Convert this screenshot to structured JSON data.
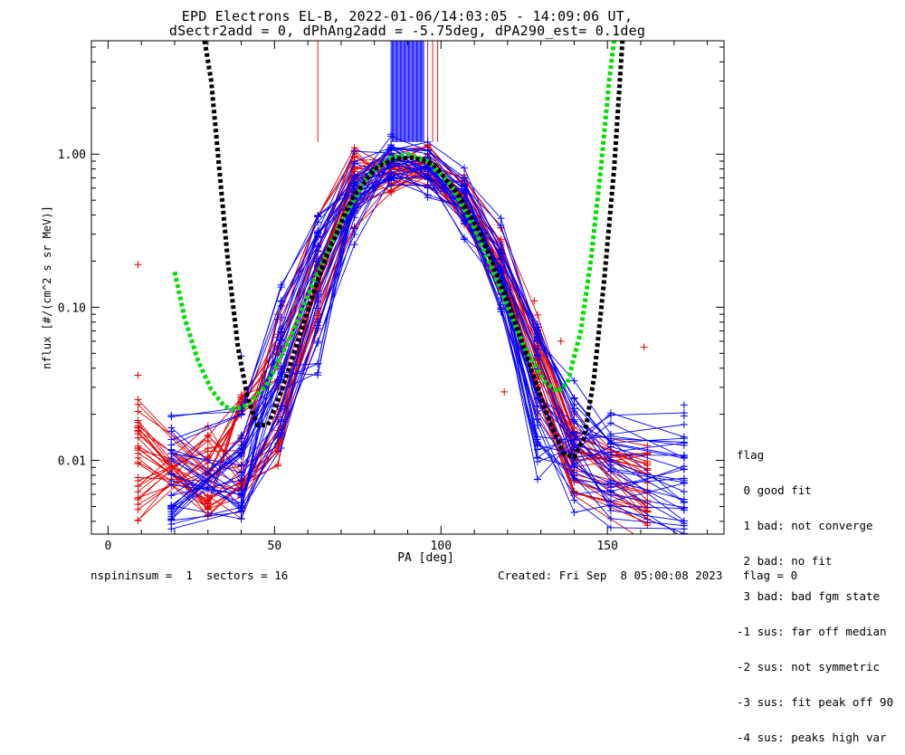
{
  "title": {
    "line1": "EPD Electrons EL-B, 2022-01-06/14:03:05 - 14:09:06 UT,",
    "line2": "dSectr2add = 0, dPhAng2add = -5.75deg, dPA290_est=   0.1deg"
  },
  "footer": {
    "left": "nspininsum =  1  sectors = 16",
    "right": "Created: Fri Sep  8 05:00:08 2023   flag = 0"
  },
  "legend": {
    "heading": "flag",
    "items": [
      " 0 good fit",
      " 1 bad: not converge",
      " 2 bad: no fit",
      " 3 bad: bad fgm state",
      "-1 sus: far off median",
      "-2 sus: not symmetric",
      "-3 sus: fit peak off 90",
      "-4 sus: peaks high var"
    ]
  },
  "chart_data": {
    "type": "line",
    "xlabel": "PA [deg]",
    "ylabel": "nflux [#/(cm^2 s sr MeV)]",
    "xlim": [
      -5,
      185
    ],
    "ylim": [
      0.0033,
      5.5
    ],
    "yscale": "log",
    "xticks": [
      0,
      50,
      100,
      150
    ],
    "xtick_labels": [
      "0",
      "50",
      "100",
      "150"
    ],
    "yticks": [
      0.01,
      0.1,
      1.0
    ],
    "ytick_labels": [
      "0.01",
      "0.10",
      "1.00"
    ],
    "colors": {
      "red": "#e00000",
      "blue": "#0000ff",
      "green": "#00e000",
      "black": "#000000"
    },
    "series": [
      {
        "style": "red-sweeps",
        "curves": [
          [
            [
              9,
              0.015
            ],
            [
              30,
              0.0055
            ],
            [
              51,
              0.0115
            ],
            [
              63,
              0.2
            ],
            [
              74,
              0.75
            ],
            [
              85,
              0.9
            ],
            [
              96,
              0.87
            ],
            [
              107,
              0.52
            ],
            [
              118,
              0.2
            ],
            [
              129,
              0.045
            ],
            [
              140,
              0.012
            ],
            [
              162,
              0.0095
            ]
          ],
          [
            [
              9,
              0.0045
            ],
            [
              30,
              0.011
            ],
            [
              40,
              0.02
            ],
            [
              51,
              0.045
            ],
            [
              63,
              0.15
            ],
            [
              74,
              0.55
            ],
            [
              85,
              0.82
            ],
            [
              96,
              0.95
            ],
            [
              107,
              0.55
            ],
            [
              118,
              0.24
            ],
            [
              129,
              0.06
            ],
            [
              140,
              0.014
            ],
            [
              162,
              0.0042
            ]
          ],
          [
            [
              9,
              0.0145
            ],
            [
              30,
              0.0075
            ],
            [
              40,
              0.0055
            ],
            [
              51,
              0.022
            ],
            [
              63,
              0.11
            ],
            [
              74,
              0.6
            ],
            [
              85,
              0.7
            ],
            [
              96,
              0.8
            ],
            [
              107,
              0.45
            ],
            [
              118,
              0.16
            ],
            [
              129,
              0.03
            ],
            [
              140,
              0.008
            ],
            [
              162,
              0.005
            ]
          ],
          [
            [
              9,
              0.0068
            ],
            [
              30,
              0.0095
            ],
            [
              40,
              0.012
            ],
            [
              51,
              0.085
            ],
            [
              63,
              0.3
            ],
            [
              74,
              0.88
            ],
            [
              85,
              0.85
            ],
            [
              96,
              0.9
            ],
            [
              107,
              0.6
            ],
            [
              118,
              0.28
            ],
            [
              129,
              0.07
            ],
            [
              140,
              0.016
            ],
            [
              162,
              0.0065
            ]
          ],
          [
            [
              9,
              0.0125
            ],
            [
              30,
              0.0048
            ],
            [
              40,
              0.0075
            ],
            [
              51,
              0.0125
            ],
            [
              63,
              0.085
            ],
            [
              74,
              0.42
            ],
            [
              85,
              0.68
            ],
            [
              96,
              0.72
            ],
            [
              107,
              0.42
            ],
            [
              118,
              0.13
            ],
            [
              129,
              0.025
            ],
            [
              140,
              0.0065
            ],
            [
              162,
              0.0038
            ]
          ],
          [
            [
              9,
              0.0195
            ],
            [
              30,
              0.0085
            ],
            [
              40,
              0.018
            ],
            [
              51,
              0.035
            ],
            [
              63,
              0.18
            ],
            [
              74,
              0.7
            ],
            [
              85,
              0.95
            ],
            [
              96,
              0.85
            ],
            [
              107,
              0.48
            ],
            [
              118,
              0.2
            ],
            [
              129,
              0.05
            ],
            [
              140,
              0.011
            ],
            [
              162,
              0.0085
            ]
          ],
          [
            [
              9,
              0.0052
            ],
            [
              30,
              0.0135
            ],
            [
              40,
              0.009
            ],
            [
              51,
              0.016
            ],
            [
              63,
              0.13
            ],
            [
              74,
              0.5
            ],
            [
              85,
              0.76
            ],
            [
              96,
              0.78
            ],
            [
              107,
              0.5
            ],
            [
              118,
              0.17
            ],
            [
              129,
              0.035
            ],
            [
              140,
              0.009
            ],
            [
              162,
              0.0058
            ]
          ],
          [
            [
              9,
              0.0155
            ],
            [
              30,
              0.006
            ],
            [
              40,
              0.025
            ],
            [
              51,
              0.055
            ],
            [
              63,
              0.24
            ],
            [
              74,
              0.82
            ],
            [
              85,
              0.8
            ],
            [
              96,
              0.92
            ],
            [
              107,
              0.56
            ],
            [
              118,
              0.22
            ],
            [
              129,
              0.055
            ],
            [
              140,
              0.013
            ],
            [
              162,
              0.011
            ]
          ]
        ]
      },
      {
        "style": "blue-sweeps",
        "curves": [
          [
            [
              19,
              0.0052
            ],
            [
              40,
              0.011
            ],
            [
              52,
              0.065
            ],
            [
              63,
              0.25
            ],
            [
              74,
              0.65
            ],
            [
              85,
              0.88
            ],
            [
              96,
              0.8
            ],
            [
              107,
              0.45
            ],
            [
              118,
              0.14
            ],
            [
              129,
              0.012
            ],
            [
              140,
              0.0105
            ],
            [
              151,
              0.0055
            ],
            [
              173,
              0.0045
            ]
          ],
          [
            [
              19,
              0.0078
            ],
            [
              40,
              0.0045
            ],
            [
              52,
              0.03
            ],
            [
              63,
              0.16
            ],
            [
              74,
              0.5
            ],
            [
              85,
              0.92
            ],
            [
              96,
              0.76
            ],
            [
              107,
              0.5
            ],
            [
              118,
              0.2
            ],
            [
              129,
              0.028
            ],
            [
              140,
              0.016
            ],
            [
              151,
              0.0085
            ],
            [
              173,
              0.0062
            ]
          ],
          [
            [
              19,
              0.0043
            ],
            [
              40,
              0.0135
            ],
            [
              52,
              0.045
            ],
            [
              63,
              0.2
            ],
            [
              74,
              0.58
            ],
            [
              85,
              0.82
            ],
            [
              96,
              0.85
            ],
            [
              107,
              0.55
            ],
            [
              118,
              0.22
            ],
            [
              129,
              0.045
            ],
            [
              140,
              0.0095
            ],
            [
              151,
              0.0135
            ],
            [
              173,
              0.011
            ]
          ],
          [
            [
              19,
              0.0098
            ],
            [
              40,
              0.0075
            ],
            [
              52,
              0.02
            ],
            [
              63,
              0.09
            ],
            [
              74,
              0.4
            ],
            [
              85,
              0.78
            ],
            [
              96,
              0.7
            ],
            [
              107,
              0.38
            ],
            [
              118,
              0.11
            ],
            [
              129,
              0.0095
            ],
            [
              140,
              0.012
            ],
            [
              151,
              0.0175
            ],
            [
              173,
              0.0155
            ]
          ],
          [
            [
              19,
              0.0125
            ],
            [
              40,
              0.0058
            ],
            [
              52,
              0.085
            ],
            [
              63,
              0.3
            ],
            [
              74,
              0.75
            ],
            [
              85,
              0.95
            ],
            [
              96,
              0.9
            ],
            [
              107,
              0.6
            ],
            [
              118,
              0.26
            ],
            [
              129,
              0.06
            ],
            [
              140,
              0.02
            ],
            [
              151,
              0.0105
            ],
            [
              173,
              0.0049
            ]
          ],
          [
            [
              19,
              0.0061
            ],
            [
              40,
              0.009
            ],
            [
              52,
              0.038
            ],
            [
              63,
              0.038
            ],
            [
              74,
              0.55
            ],
            [
              85,
              0.86
            ],
            [
              96,
              0.62
            ],
            [
              107,
              0.35
            ],
            [
              118,
              0.15
            ],
            [
              129,
              0.021
            ],
            [
              140,
              0.0078
            ],
            [
              151,
              0.0065
            ],
            [
              173,
              0.0088
            ]
          ],
          [
            [
              19,
              0.0155
            ],
            [
              40,
              0.026
            ],
            [
              52,
              0.12
            ],
            [
              63,
              0.36
            ],
            [
              74,
              0.8
            ],
            [
              85,
              1.05
            ],
            [
              96,
              0.95
            ],
            [
              107,
              0.62
            ],
            [
              118,
              0.3
            ],
            [
              129,
              0.07
            ],
            [
              140,
              0.025
            ],
            [
              151,
              0.015
            ],
            [
              173,
              0.013
            ]
          ],
          [
            [
              19,
              0.0041
            ],
            [
              40,
              0.0042
            ],
            [
              52,
              0.015
            ],
            [
              63,
              0.07
            ],
            [
              74,
              0.3
            ],
            [
              85,
              0.72
            ],
            [
              96,
              0.66
            ],
            [
              107,
              0.42
            ],
            [
              118,
              0.12
            ],
            [
              129,
              0.016
            ],
            [
              140,
              0.006
            ],
            [
              151,
              0.0048
            ],
            [
              173,
              0.0041
            ]
          ]
        ]
      },
      {
        "style": "green-fit",
        "points": [
          [
            20,
            0.17
          ],
          [
            23,
            0.085
          ],
          [
            27,
            0.045
          ],
          [
            31,
            0.029
          ],
          [
            35,
            0.0225
          ],
          [
            38,
            0.0215
          ],
          [
            42,
            0.023
          ],
          [
            48,
            0.032
          ],
          [
            55,
            0.065
          ],
          [
            62,
            0.15
          ],
          [
            70,
            0.36
          ],
          [
            78,
            0.72
          ],
          [
            85,
            0.95
          ],
          [
            90,
            1.0
          ],
          [
            96,
            0.9
          ],
          [
            103,
            0.63
          ],
          [
            110,
            0.33
          ],
          [
            118,
            0.13
          ],
          [
            125,
            0.055
          ],
          [
            131,
            0.033
          ],
          [
            135,
            0.028
          ],
          [
            138,
            0.032
          ],
          [
            142,
            0.07
          ],
          [
            145,
            0.2
          ],
          [
            148,
            0.8
          ],
          [
            150.5,
            3.0
          ],
          [
            152,
            5.5
          ]
        ]
      },
      {
        "style": "black-fit",
        "points": [
          [
            29,
            5.5
          ],
          [
            31,
            3.0
          ],
          [
            33,
            1.0
          ],
          [
            36,
            0.2
          ],
          [
            39,
            0.055
          ],
          [
            42,
            0.025
          ],
          [
            45,
            0.017
          ],
          [
            48,
            0.017
          ],
          [
            52,
            0.028
          ],
          [
            58,
            0.07
          ],
          [
            65,
            0.2
          ],
          [
            73,
            0.5
          ],
          [
            80,
            0.8
          ],
          [
            86,
            0.93
          ],
          [
            92,
            0.95
          ],
          [
            98,
            0.85
          ],
          [
            105,
            0.55
          ],
          [
            112,
            0.3
          ],
          [
            120,
            0.11
          ],
          [
            127,
            0.04
          ],
          [
            133,
            0.017
          ],
          [
            137,
            0.011
          ],
          [
            140,
            0.0105
          ],
          [
            143,
            0.014
          ],
          [
            146,
            0.035
          ],
          [
            149,
            0.15
          ],
          [
            152,
            0.8
          ],
          [
            154.5,
            5.5
          ]
        ]
      }
    ],
    "saturated_band": {
      "blue_x": [
        [
          85,
          95
        ]
      ],
      "red_x": [
        63,
        96,
        97.5,
        99
      ]
    },
    "outliers": [
      [
        9,
        0.19,
        "red"
      ],
      [
        9,
        0.036,
        "red"
      ],
      [
        161,
        0.055,
        "red"
      ],
      [
        74,
        0.95,
        "red"
      ],
      [
        128,
        0.11,
        "red"
      ],
      [
        136,
        0.06,
        "red"
      ],
      [
        119,
        0.028,
        "red"
      ],
      [
        63,
        0.39,
        "blue"
      ],
      [
        85,
        1.35,
        "blue"
      ],
      [
        173,
        0.023,
        "blue"
      ],
      [
        173,
        0.0195,
        "blue"
      ],
      [
        40,
        0.048,
        "blue"
      ],
      [
        129,
        0.0075,
        "blue"
      ]
    ]
  }
}
